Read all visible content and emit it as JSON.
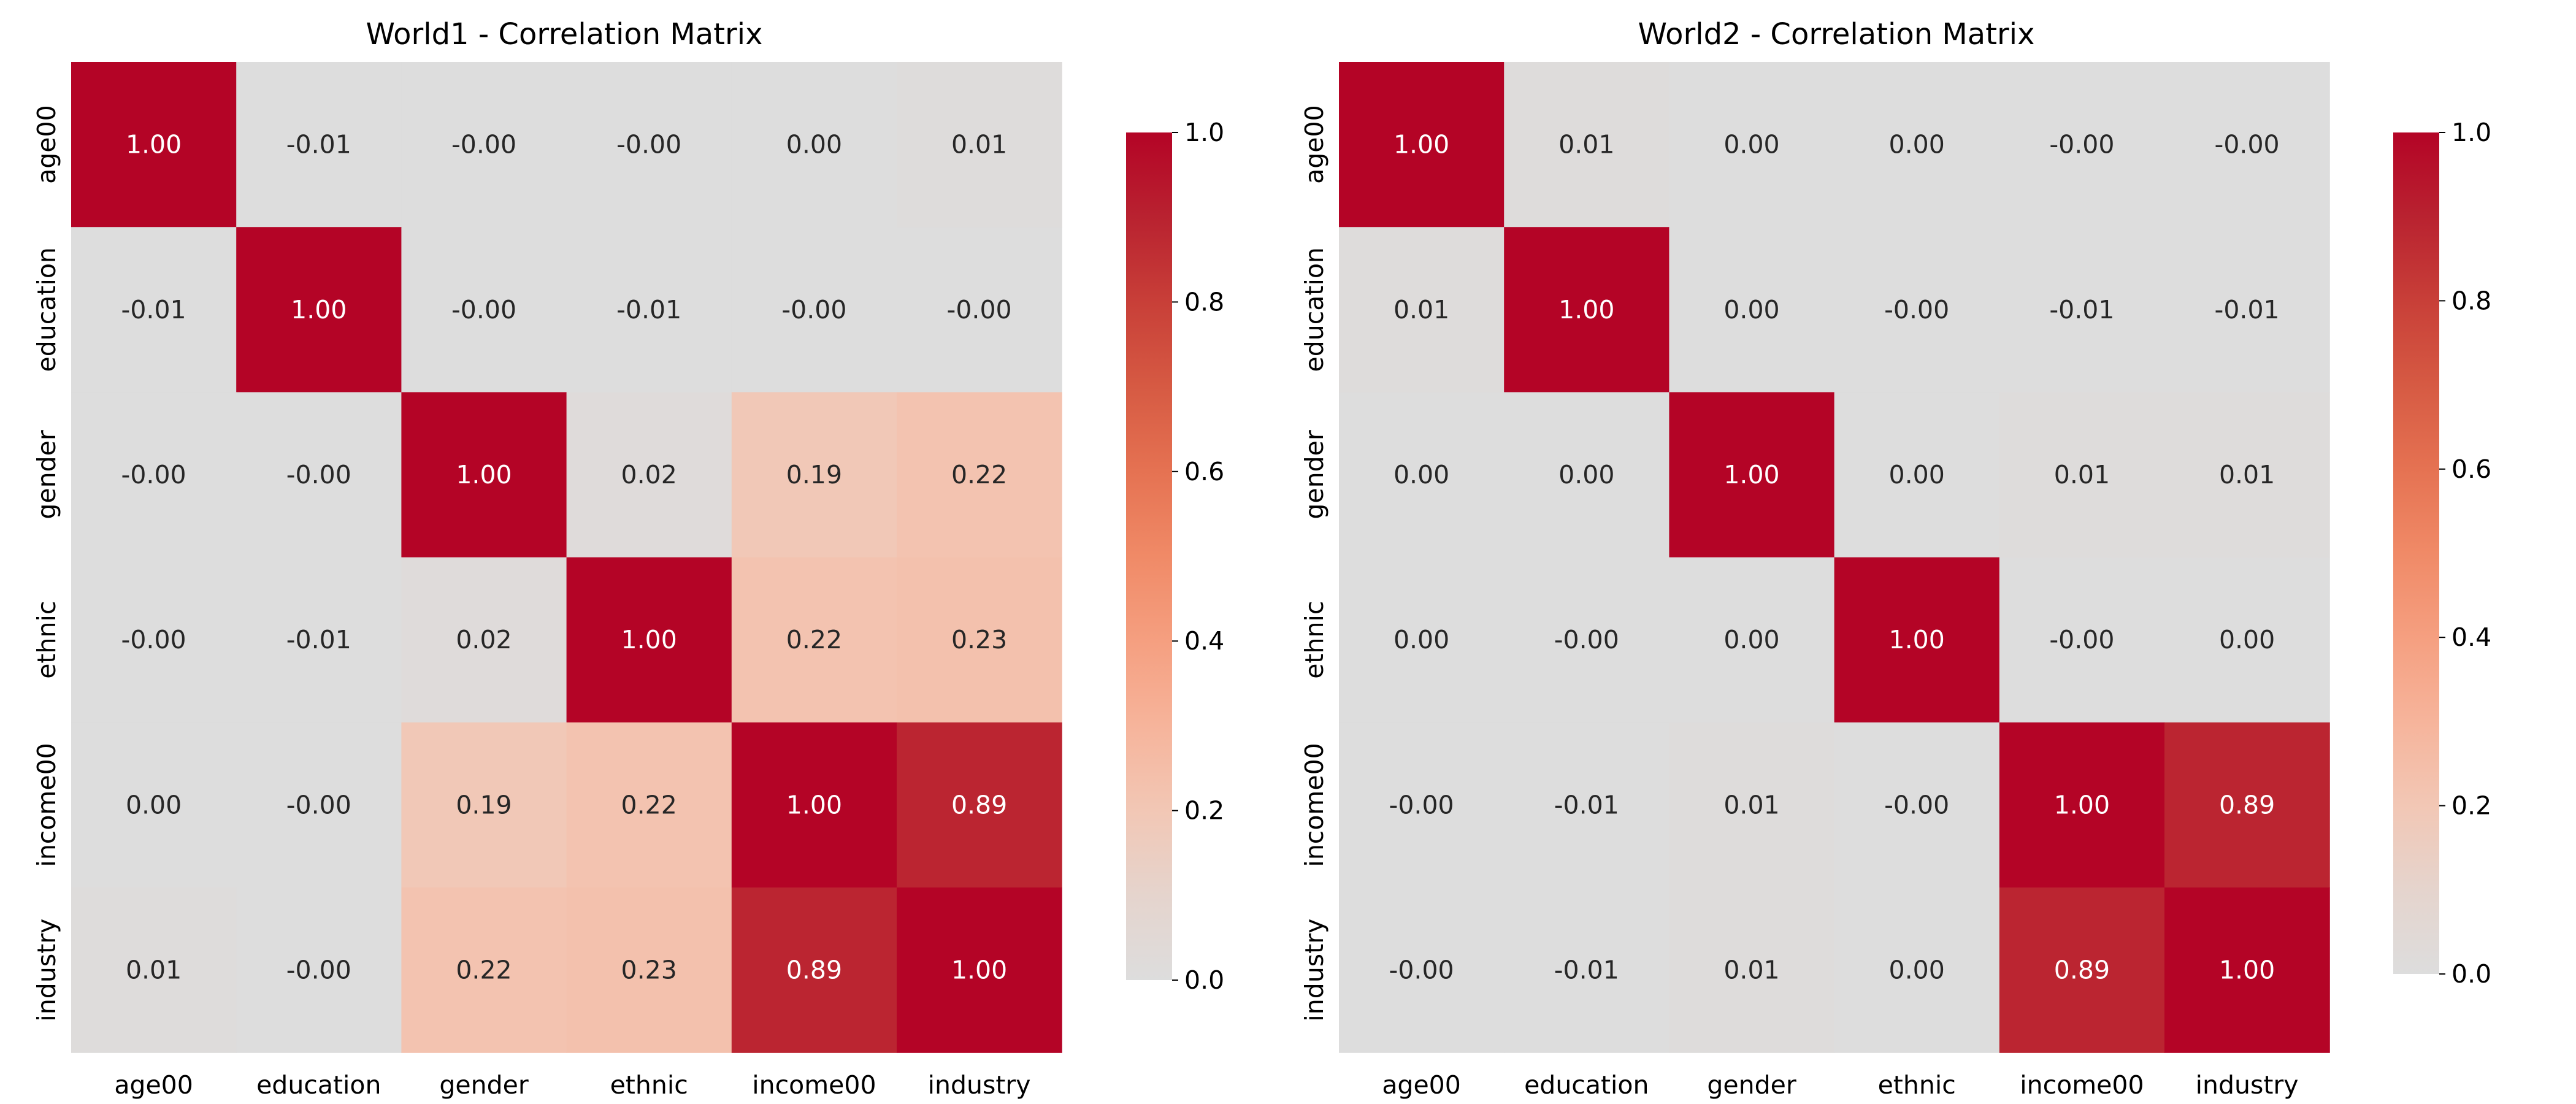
{
  "chart_data": [
    {
      "type": "heatmap",
      "title": "World1 - Correlation Matrix",
      "xlabel": "",
      "ylabel": "",
      "x_categories": [
        "age00",
        "education",
        "gender",
        "ethnic",
        "income00",
        "industry"
      ],
      "y_categories": [
        "age00",
        "education",
        "gender",
        "ethnic",
        "income00",
        "industry"
      ],
      "values": [
        [
          1.0,
          -0.01,
          -0.0,
          -0.0,
          0.0,
          0.01
        ],
        [
          -0.01,
          1.0,
          -0.0,
          -0.01,
          -0.0,
          -0.0
        ],
        [
          -0.0,
          -0.0,
          1.0,
          0.02,
          0.19,
          0.22
        ],
        [
          -0.0,
          -0.01,
          0.02,
          1.0,
          0.22,
          0.23
        ],
        [
          0.0,
          -0.0,
          0.19,
          0.22,
          1.0,
          0.89
        ],
        [
          0.01,
          -0.0,
          0.22,
          0.23,
          0.89,
          1.0
        ]
      ],
      "labels": [
        [
          "1.00",
          "-0.01",
          "-0.00",
          "-0.00",
          "0.00",
          "0.01"
        ],
        [
          "-0.01",
          "1.00",
          "-0.00",
          "-0.01",
          "-0.00",
          "-0.00"
        ],
        [
          "-0.00",
          "-0.00",
          "1.00",
          "0.02",
          "0.19",
          "0.22"
        ],
        [
          "-0.00",
          "-0.01",
          "0.02",
          "1.00",
          "0.22",
          "0.23"
        ],
        [
          "0.00",
          "-0.00",
          "0.19",
          "0.22",
          "1.00",
          "0.89"
        ],
        [
          "0.01",
          "-0.00",
          "0.22",
          "0.23",
          "0.89",
          "1.00"
        ]
      ],
      "colorbar": {
        "range": [
          0.0,
          1.0
        ],
        "ticks": [
          "0.0",
          "0.2",
          "0.4",
          "0.6",
          "0.8",
          "1.0"
        ],
        "colormap": "coolwarm-upper"
      }
    },
    {
      "type": "heatmap",
      "title": "World2 - Correlation Matrix",
      "xlabel": "",
      "ylabel": "",
      "x_categories": [
        "age00",
        "education",
        "gender",
        "ethnic",
        "income00",
        "industry"
      ],
      "y_categories": [
        "age00",
        "education",
        "gender",
        "ethnic",
        "income00",
        "industry"
      ],
      "values": [
        [
          1.0,
          0.01,
          0.0,
          0.0,
          -0.0,
          -0.0
        ],
        [
          0.01,
          1.0,
          0.0,
          -0.0,
          -0.01,
          -0.01
        ],
        [
          0.0,
          0.0,
          1.0,
          0.0,
          0.01,
          0.01
        ],
        [
          0.0,
          -0.0,
          0.0,
          1.0,
          -0.0,
          0.0
        ],
        [
          -0.0,
          -0.01,
          0.01,
          -0.0,
          1.0,
          0.89
        ],
        [
          -0.0,
          -0.01,
          0.01,
          0.0,
          0.89,
          1.0
        ]
      ],
      "labels": [
        [
          "1.00",
          "0.01",
          "0.00",
          "0.00",
          "-0.00",
          "-0.00"
        ],
        [
          "0.01",
          "1.00",
          "0.00",
          "-0.00",
          "-0.01",
          "-0.01"
        ],
        [
          "0.00",
          "0.00",
          "1.00",
          "0.00",
          "0.01",
          "0.01"
        ],
        [
          "0.00",
          "-0.00",
          "0.00",
          "1.00",
          "-0.00",
          "0.00"
        ],
        [
          "-0.00",
          "-0.01",
          "0.01",
          "-0.00",
          "1.00",
          "0.89"
        ],
        [
          "-0.00",
          "-0.01",
          "0.01",
          "0.00",
          "0.89",
          "1.00"
        ]
      ],
      "colorbar": {
        "range": [
          0.0,
          1.0
        ],
        "ticks": [
          "0.0",
          "0.2",
          "0.4",
          "0.6",
          "0.8",
          "1.0"
        ],
        "colormap": "coolwarm-upper"
      }
    }
  ]
}
